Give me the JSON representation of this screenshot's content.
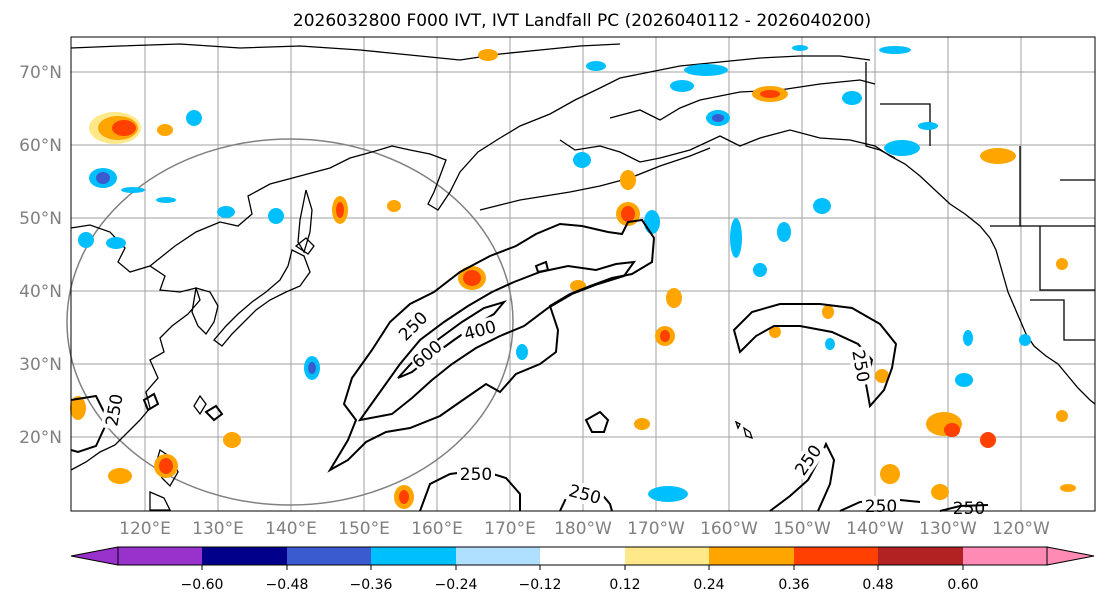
{
  "title": "2026032800 F000 IVT, IVT Landfall PC (2026040112 - 2026040200)",
  "map": {
    "lon_range": [
      110,
      250
    ],
    "lat_range": [
      10,
      75
    ],
    "lat_labels": [
      "70°N",
      "60°N",
      "50°N",
      "40°N",
      "30°N",
      "20°N"
    ],
    "lon_labels": [
      "120°E",
      "130°E",
      "140°E",
      "150°E",
      "160°E",
      "170°E",
      "180°W",
      "170°W",
      "160°W",
      "150°W",
      "140°W",
      "130°W",
      "120°W"
    ],
    "ivt_contour_labels": [
      "250",
      "400",
      "600",
      "250",
      "250",
      "250",
      "250",
      "250",
      "250"
    ],
    "colors": {
      "coast": "#000000",
      "grid": "#a0a0a0",
      "circle": "#808080"
    }
  },
  "colorbar": {
    "ticks": [
      "−0.60",
      "−0.48",
      "−0.36",
      "−0.24",
      "−0.12",
      "0.12",
      "0.24",
      "0.36",
      "0.48",
      "0.60"
    ],
    "tick_values": [
      -0.6,
      -0.48,
      -0.36,
      -0.24,
      -0.12,
      0.12,
      0.24,
      0.36,
      0.48,
      0.6
    ],
    "under_color": "#9932cc",
    "over_color": "#ff8ab4",
    "segments": [
      "#9932cc",
      "#00008b",
      "#3a5bd0",
      "#00bfff",
      "#b0e0ff",
      "#ffffff",
      "#ffe88a",
      "#ffa500",
      "#ff4000",
      "#b22222",
      "#ff8ab4"
    ]
  }
}
